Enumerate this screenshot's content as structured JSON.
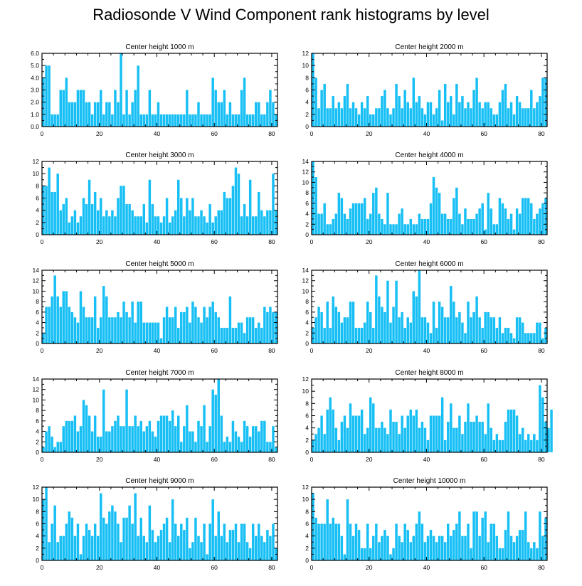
{
  "title": "Radiosonde V Wind Component rank histograms by level",
  "colors": {
    "bar": "#17BFF5",
    "axis": "#000000"
  },
  "chart_data": [
    {
      "type": "bar",
      "title": "Center height 1000 m",
      "xlim": [
        0,
        82
      ],
      "ylim": [
        0,
        6
      ],
      "xticks": [
        0,
        20,
        40,
        60,
        80
      ],
      "yticks": [
        "0.0",
        "1.0",
        "2.0",
        "3.0",
        "4.0",
        "5.0",
        "6.0"
      ],
      "values": [
        4,
        5,
        5,
        1,
        1,
        1,
        3,
        3,
        4,
        2,
        2,
        2,
        3,
        3,
        3,
        2,
        2,
        1,
        2,
        2,
        3,
        1,
        2,
        2,
        1,
        3,
        2,
        6,
        1,
        3,
        1,
        2,
        3,
        5,
        1,
        1,
        1,
        3,
        1,
        1,
        2,
        1,
        1,
        1,
        1,
        1,
        1,
        1,
        1,
        1,
        3,
        1,
        1,
        1,
        2,
        1,
        1,
        1,
        1,
        4,
        3,
        2,
        2,
        3,
        1,
        2,
        1,
        1,
        1,
        3,
        4,
        1,
        1,
        1,
        2,
        2,
        1,
        1,
        2,
        3,
        2,
        1
      ]
    },
    {
      "type": "bar",
      "title": "Center height 2000 m",
      "xlim": [
        0,
        82
      ],
      "ylim": [
        0,
        12
      ],
      "xticks": [
        0,
        20,
        40,
        60,
        80
      ],
      "yticks": [
        "0",
        "2",
        "4",
        "6",
        "8",
        "10",
        "12"
      ],
      "values": [
        12,
        8,
        3,
        6,
        7,
        3,
        3,
        5,
        3,
        4,
        3,
        5,
        7,
        3,
        4,
        3,
        2,
        4,
        3,
        5,
        2,
        2,
        3,
        3,
        5,
        6,
        3,
        2,
        3,
        7,
        5,
        3,
        6,
        4,
        3,
        8,
        4,
        5,
        3,
        2,
        4,
        4,
        2,
        3,
        6,
        1,
        7,
        4,
        5,
        2,
        7,
        4,
        5,
        3,
        4,
        3,
        6,
        8,
        4,
        3,
        4,
        4,
        3,
        2,
        2,
        4,
        6,
        7,
        3,
        4,
        2,
        5,
        4,
        3,
        3,
        3,
        6,
        3,
        4,
        5,
        8,
        8
      ]
    },
    {
      "type": "bar",
      "title": "Center height 3000 m",
      "xlim": [
        0,
        82
      ],
      "ylim": [
        0,
        12
      ],
      "xticks": [
        0,
        20,
        40,
        60,
        80
      ],
      "yticks": [
        "0",
        "2",
        "4",
        "6",
        "8",
        "10",
        "12"
      ],
      "values": [
        8,
        8,
        11,
        7,
        7,
        10,
        4,
        5,
        6,
        2,
        3,
        4,
        2,
        3,
        6,
        5,
        9,
        5,
        7,
        4,
        6,
        3,
        4,
        3,
        4,
        3,
        6,
        8,
        8,
        5,
        5,
        4,
        3,
        3,
        3,
        5,
        2,
        9,
        5,
        3,
        3,
        2,
        3,
        6,
        2,
        3,
        4,
        9,
        6,
        3,
        6,
        4,
        6,
        3,
        3,
        4,
        3,
        2,
        5,
        2,
        3,
        4,
        4,
        7,
        6,
        6,
        8,
        11,
        10,
        3,
        5,
        3,
        9,
        3,
        3,
        7,
        4,
        3,
        4,
        4,
        10,
        4
      ]
    },
    {
      "type": "bar",
      "title": "Center height 4000 m",
      "xlim": [
        0,
        82
      ],
      "ylim": [
        0,
        14
      ],
      "xticks": [
        0,
        20,
        40,
        60,
        80
      ],
      "yticks": [
        "0",
        "2",
        "4",
        "6",
        "8",
        "10",
        "12",
        "14"
      ],
      "values": [
        14,
        11,
        4,
        4,
        6,
        2,
        2,
        3,
        4,
        8,
        7,
        4,
        3,
        5,
        6,
        6,
        6,
        6,
        7,
        3,
        4,
        8,
        9,
        4,
        3,
        2,
        8,
        2,
        2,
        2,
        4,
        5,
        2,
        2,
        3,
        2,
        2,
        4,
        3,
        3,
        3,
        6,
        11,
        9,
        8,
        4,
        4,
        3,
        3,
        7,
        9,
        4,
        2,
        5,
        3,
        3,
        3,
        4,
        5,
        6,
        1,
        8,
        5,
        2,
        2,
        7,
        6,
        5,
        3,
        4,
        1,
        5,
        4,
        7,
        7,
        7,
        6,
        3,
        4,
        5,
        6,
        7
      ]
    },
    {
      "type": "bar",
      "title": "Center height 5000 m",
      "xlim": [
        0,
        82
      ],
      "ylim": [
        0,
        14
      ],
      "xticks": [
        0,
        20,
        40,
        60,
        80
      ],
      "yticks": [
        "0",
        "2",
        "4",
        "6",
        "8",
        "10",
        "12",
        "14"
      ],
      "values": [
        2,
        7,
        7,
        9,
        13,
        9,
        7,
        10,
        10,
        7,
        6,
        5,
        4,
        10,
        7,
        5,
        5,
        5,
        9,
        3,
        5,
        11,
        9,
        5,
        5,
        5,
        6,
        5,
        8,
        6,
        5,
        8,
        4,
        8,
        8,
        4,
        4,
        4,
        4,
        4,
        4,
        1,
        5,
        7,
        5,
        5,
        7,
        3,
        6,
        6,
        7,
        4,
        8,
        7,
        5,
        4,
        7,
        5,
        7,
        8,
        6,
        5,
        3,
        3,
        3,
        9,
        3,
        3,
        4,
        4,
        2,
        5,
        5,
        5,
        3,
        4,
        3,
        7,
        6,
        7,
        6,
        6
      ]
    },
    {
      "type": "bar",
      "title": "Center height 6000 m",
      "xlim": [
        0,
        82
      ],
      "ylim": [
        0,
        14
      ],
      "xticks": [
        0,
        20,
        40,
        60,
        80
      ],
      "yticks": [
        "0",
        "2",
        "4",
        "6",
        "8",
        "10",
        "12",
        "14"
      ],
      "values": [
        3,
        5,
        7,
        6,
        3,
        8,
        3,
        9,
        7,
        6,
        4,
        5,
        5,
        8,
        8,
        3,
        3,
        3,
        4,
        8,
        6,
        3,
        13,
        9,
        7,
        6,
        12,
        4,
        7,
        12,
        5,
        6,
        3,
        5,
        4,
        10,
        9,
        14,
        5,
        5,
        4,
        2,
        8,
        3,
        8,
        7,
        5,
        5,
        11,
        8,
        5,
        6,
        4,
        2,
        8,
        5,
        6,
        9,
        5,
        3,
        6,
        6,
        5,
        5,
        3,
        5,
        2,
        3,
        3,
        2,
        1,
        5,
        5,
        4,
        2,
        2,
        2,
        2,
        4,
        4,
        1,
        3
      ]
    },
    {
      "type": "bar",
      "title": "Center height 7000 m",
      "xlim": [
        0,
        82
      ],
      "ylim": [
        0,
        14
      ],
      "xticks": [
        0,
        20,
        40,
        60,
        80
      ],
      "yticks": [
        "0",
        "2",
        "4",
        "6",
        "8",
        "10",
        "12",
        "14"
      ],
      "values": [
        1,
        4,
        5,
        3,
        1,
        2,
        2,
        5,
        6,
        6,
        6,
        7,
        4,
        5,
        10,
        9,
        7,
        4,
        7,
        3,
        3,
        12,
        4,
        4,
        5,
        6,
        7,
        5,
        5,
        12,
        5,
        5,
        7,
        5,
        6,
        4,
        5,
        6,
        4,
        3,
        6,
        7,
        7,
        7,
        6,
        8,
        5,
        7,
        2,
        5,
        9,
        4,
        4,
        2,
        6,
        5,
        9,
        2,
        5,
        12,
        11,
        14,
        7,
        2,
        3,
        2,
        6,
        4,
        3,
        2,
        6,
        5,
        3,
        5,
        5,
        4,
        6,
        6,
        2,
        2,
        5,
        1
      ]
    },
    {
      "type": "bar",
      "title": "Center height 8000 m",
      "xlim": [
        0,
        82
      ],
      "ylim": [
        0,
        12
      ],
      "xticks": [
        0,
        20,
        40,
        60,
        80
      ],
      "yticks": [
        "0",
        "2",
        "4",
        "6",
        "8",
        "10",
        "12"
      ],
      "values": [
        2,
        3,
        4,
        6,
        3,
        7,
        9,
        7,
        4,
        2,
        5,
        6,
        4,
        8,
        6,
        6,
        6,
        7,
        3,
        4,
        9,
        8,
        4,
        4,
        5,
        4,
        3,
        7,
        5,
        5,
        3,
        6,
        4,
        6,
        7,
        6,
        7,
        4,
        5,
        4,
        2,
        6,
        6,
        6,
        6,
        9,
        2,
        5,
        8,
        4,
        4,
        6,
        3,
        5,
        8,
        5,
        5,
        6,
        5,
        5,
        3,
        8,
        4,
        2,
        3,
        2,
        2,
        5,
        7,
        7,
        7,
        6,
        3,
        4,
        2,
        3,
        2,
        3,
        2,
        11,
        9,
        5,
        4,
        7
      ]
    },
    {
      "type": "bar",
      "title": "Center height 9000 m",
      "xlim": [
        0,
        82
      ],
      "ylim": [
        0,
        12
      ],
      "xticks": [
        0,
        20,
        40,
        60,
        80
      ],
      "yticks": [
        "0",
        "2",
        "4",
        "6",
        "8",
        "10",
        "12"
      ],
      "values": [
        10,
        12,
        3,
        6,
        9,
        3,
        4,
        4,
        6,
        8,
        7,
        4,
        6,
        1,
        4,
        6,
        5,
        4,
        6,
        4,
        11,
        7,
        6,
        8,
        9,
        8,
        6,
        3,
        7,
        7,
        9,
        6,
        11,
        4,
        7,
        4,
        3,
        9,
        5,
        3,
        4,
        5,
        6,
        7,
        3,
        10,
        6,
        4,
        6,
        5,
        7,
        2,
        3,
        7,
        4,
        3,
        6,
        1,
        6,
        10,
        4,
        8,
        4,
        6,
        3,
        5,
        5,
        6,
        3,
        6,
        6,
        3,
        2,
        6,
        4,
        6,
        4,
        3,
        5,
        4,
        6,
        2
      ]
    },
    {
      "type": "bar",
      "title": "Center height 10000 m",
      "xlim": [
        0,
        82
      ],
      "ylim": [
        0,
        12
      ],
      "xticks": [
        0,
        20,
        40,
        60,
        80
      ],
      "yticks": [
        "0",
        "2",
        "4",
        "6",
        "8",
        "10",
        "12"
      ],
      "values": [
        11,
        7,
        6,
        6,
        6,
        10,
        6,
        7,
        6,
        6,
        4,
        1,
        10,
        6,
        4,
        6,
        5,
        2,
        2,
        6,
        2,
        4,
        6,
        3,
        4,
        5,
        4,
        1,
        2,
        6,
        4,
        3,
        6,
        5,
        3,
        4,
        6,
        8,
        6,
        3,
        4,
        5,
        4,
        3,
        4,
        4,
        3,
        6,
        4,
        5,
        6,
        8,
        4,
        4,
        6,
        2,
        8,
        8,
        4,
        7,
        8,
        3,
        6,
        6,
        4,
        2,
        2,
        5,
        8,
        4,
        3,
        4,
        5,
        5,
        8,
        3,
        2,
        3,
        2,
        8,
        4,
        7
      ]
    }
  ]
}
